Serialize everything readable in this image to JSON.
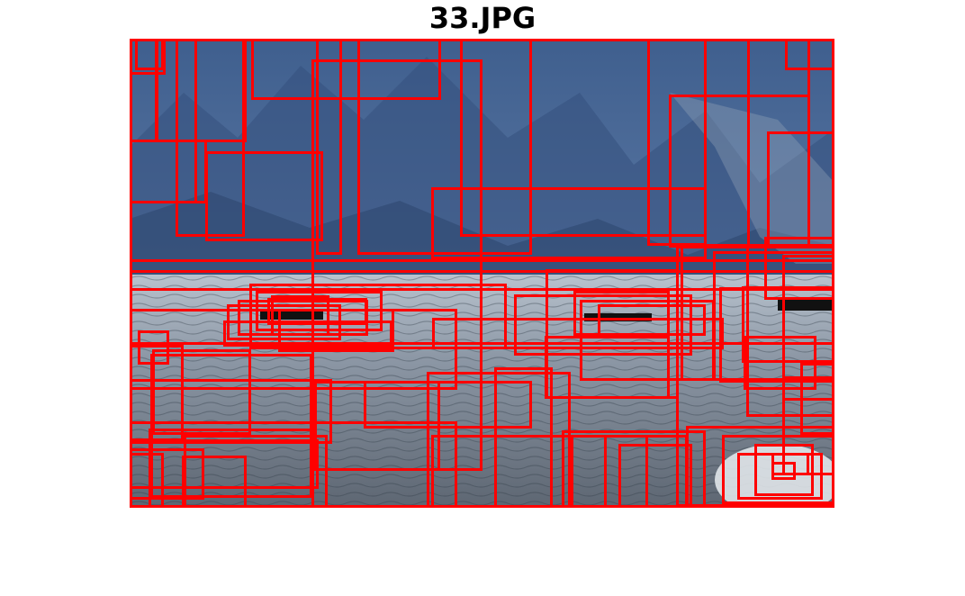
{
  "figure": {
    "title": "33.JPG"
  },
  "photo": {
    "description_colors": {
      "sky_mountains": "#4a6a97",
      "water": "#8a95a3"
    }
  },
  "overlay": {
    "box_color": "#ff0000"
  }
}
